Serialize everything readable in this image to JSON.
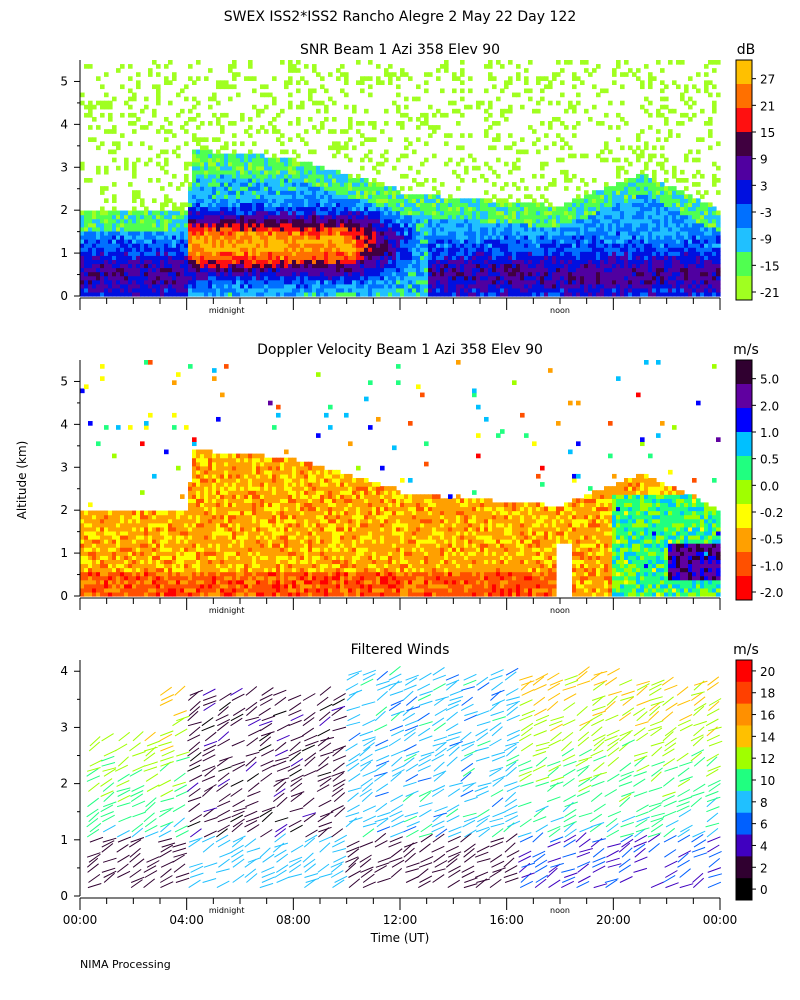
{
  "figure_title": "SWEX ISS2*ISS2 Rancho Alegre   2 May 22 Day 122",
  "credit": "NIMA Processing",
  "shared": {
    "ylabel": "Altitude (km)",
    "xlabel": "Time (UT)",
    "x_ticks": [
      "00:00",
      "04:00",
      "08:00",
      "12:00",
      "16:00",
      "20:00",
      "00:00"
    ],
    "x_markers": [
      "midnight",
      "noon"
    ],
    "x_range_hours": [
      0,
      24
    ],
    "marker_hours": {
      "midnight": 5.5,
      "noon": 18
    }
  },
  "colors": {
    "snr": [
      "#a0ff20",
      "#50ff50",
      "#20c0ff",
      "#0070ff",
      "#0010e0",
      "#5000a0",
      "#400040",
      "#ff1010",
      "#ff7000",
      "#ffc000"
    ],
    "doppler": [
      "#ff0000",
      "#ff5000",
      "#ffa000",
      "#ffff00",
      "#a0ff00",
      "#20ff80",
      "#00c0ff",
      "#0000ff",
      "#6000a0",
      "#300030"
    ],
    "winds": [
      "#000000",
      "#300030",
      "#4000c0",
      "#0060ff",
      "#20c0ff",
      "#20ff80",
      "#a0ff00",
      "#ffc000",
      "#ff9000",
      "#ff4000",
      "#ff0000"
    ]
  },
  "chart_data": [
    {
      "type": "heatmap",
      "title": "SNR Beam 1 Azi 358 Elev 90",
      "colorbar_unit": "dB",
      "colorbar_ticks": [
        "27",
        "21",
        "15",
        "9",
        "3",
        "-3",
        "-9",
        "-15",
        "-21"
      ],
      "ylim": [
        0,
        5.5
      ],
      "y_ticks": [
        "0",
        "1",
        "2",
        "3",
        "4",
        "5"
      ],
      "xlim_hours": [
        0,
        24
      ],
      "value_range": [
        -24,
        30
      ]
    },
    {
      "type": "heatmap",
      "title": "Doppler Velocity Beam 1 Azi 358 Elev 90",
      "colorbar_unit": "m/s",
      "colorbar_ticks": [
        "5.0",
        "2.0",
        "1.0",
        "0.5",
        "0.0",
        "-0.2",
        "-0.5",
        "-1.0",
        "-2.0"
      ],
      "ylim": [
        0,
        5.5
      ],
      "y_ticks": [
        "0",
        "1",
        "2",
        "3",
        "4",
        "5"
      ],
      "xlim_hours": [
        0,
        24
      ],
      "value_range": [
        -2.5,
        5.5
      ]
    },
    {
      "type": "wind-barbs",
      "title": "Filtered Winds",
      "colorbar_unit": "m/s",
      "colorbar_ticks": [
        "20",
        "18",
        "16",
        "14",
        "12",
        "10",
        "8",
        "6",
        "4",
        "2",
        "0"
      ],
      "ylim": [
        0,
        4.2
      ],
      "y_ticks": [
        "0",
        "1",
        "2",
        "3",
        "4"
      ],
      "xlim_hours": [
        0,
        24
      ],
      "speed_range": [
        0,
        22
      ]
    }
  ]
}
